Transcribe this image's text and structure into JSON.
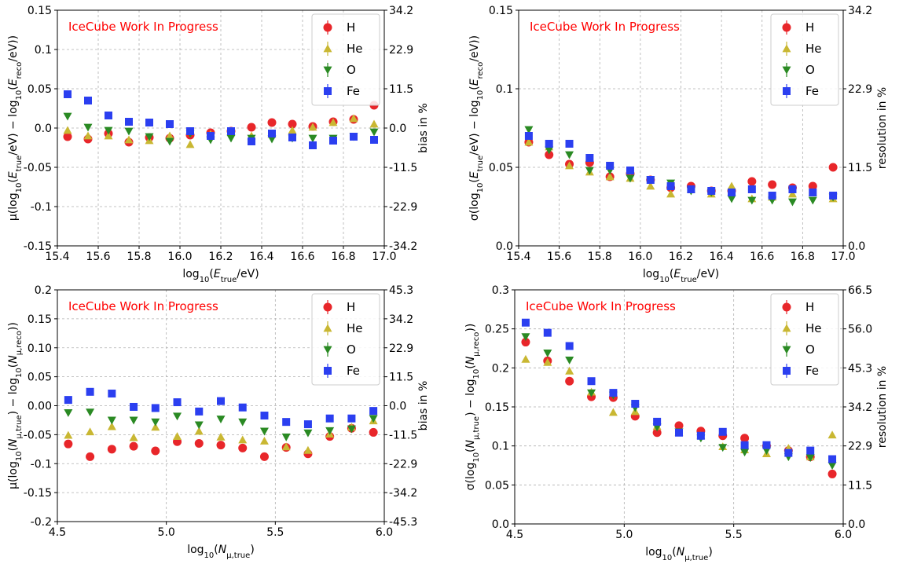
{
  "markers": {
    "H": "circle",
    "He": "triangle-up",
    "O": "triangle-down",
    "Fe": "square"
  },
  "colors": {
    "H": "#e8262a",
    "He": "#c9b732",
    "O": "#2a8a23",
    "Fe": "#2b3ff0",
    "watermark": "#ff0000",
    "grid": "#b0b0b0"
  },
  "chart_data": [
    {
      "type": "scatter",
      "watermark": "IceCube Work In Progress",
      "xlabel": "log10(Etrue/eV)",
      "ylabel": "μ(log10(Etrue/eV) − log10(Ereco/eV))",
      "ylabel_right": "bias in %",
      "xlim": [
        15.4,
        17.0
      ],
      "ylim": [
        -0.15,
        0.15
      ],
      "xticks": [
        15.4,
        15.6,
        15.8,
        16.0,
        16.2,
        16.4,
        16.6,
        16.8,
        17.0
      ],
      "xticklabels": [
        "15.4",
        "15.6",
        "15.8",
        "16.0",
        "16.2",
        "16.4",
        "16.6",
        "16.8",
        "17.0"
      ],
      "yticks": [
        -0.15,
        -0.1,
        -0.05,
        0.0,
        0.05,
        0.1,
        0.15
      ],
      "yticklabels": [
        "-0.15",
        "-0.1",
        "-0.05",
        "0.0",
        "0.05",
        "0.1",
        "0.15"
      ],
      "right_ticklabels": [
        "-34.2",
        "-22.9",
        "-11.5",
        "0.0",
        "11.5",
        "22.9",
        "34.2"
      ],
      "grid": true,
      "legend": "top-right",
      "x": [
        15.45,
        15.55,
        15.65,
        15.75,
        15.85,
        15.95,
        16.05,
        16.15,
        16.25,
        16.35,
        16.45,
        16.55,
        16.65,
        16.75,
        16.85,
        16.95
      ],
      "series": [
        {
          "name": "H",
          "values": [
            -0.011,
            -0.014,
            -0.007,
            -0.018,
            -0.012,
            -0.013,
            -0.009,
            -0.006,
            -0.004,
            0.001,
            0.007,
            0.005,
            0.002,
            0.008,
            0.011,
            0.029
          ]
        },
        {
          "name": "He",
          "values": [
            -0.003,
            -0.01,
            -0.01,
            -0.015,
            -0.016,
            -0.01,
            -0.021,
            -0.008,
            -0.005,
            -0.01,
            -0.008,
            -0.003,
            0.001,
            0.007,
            0.012,
            0.005
          ]
        },
        {
          "name": "O",
          "values": [
            0.015,
            0.001,
            -0.003,
            -0.004,
            -0.011,
            -0.017,
            -0.007,
            -0.015,
            -0.013,
            -0.013,
            -0.014,
            -0.013,
            -0.013,
            -0.013,
            -0.011,
            -0.005
          ]
        },
        {
          "name": "Fe",
          "values": [
            0.043,
            0.035,
            0.016,
            0.008,
            0.007,
            0.005,
            -0.004,
            -0.01,
            -0.004,
            -0.017,
            -0.007,
            -0.012,
            -0.022,
            -0.016,
            -0.011,
            -0.015
          ]
        }
      ]
    },
    {
      "type": "scatter",
      "watermark": "IceCube Work In Progress",
      "xlabel": "log10(Etrue/eV)",
      "ylabel": "σ(log10(Etrue/eV) − log10(Ereco/eV))",
      "ylabel_right": "resolution in %",
      "xlim": [
        15.4,
        17.0
      ],
      "ylim": [
        0.0,
        0.15
      ],
      "xticks": [
        15.4,
        15.6,
        15.8,
        16.0,
        16.2,
        16.4,
        16.6,
        16.8,
        17.0
      ],
      "xticklabels": [
        "15.4",
        "15.6",
        "15.8",
        "16.0",
        "16.2",
        "16.4",
        "16.6",
        "16.8",
        "17.0"
      ],
      "yticks": [
        0.0,
        0.05,
        0.1,
        0.15
      ],
      "yticklabels": [
        "0.0",
        "0.05",
        "0.1",
        "0.15"
      ],
      "right_ticks": [
        0.0,
        0.05,
        0.1,
        0.15
      ],
      "right_ticklabels": [
        "0.0",
        "11.5",
        "22.9",
        "34.2"
      ],
      "grid": true,
      "legend": "top-right",
      "x": [
        15.45,
        15.55,
        15.65,
        15.75,
        15.85,
        15.95,
        16.05,
        16.15,
        16.25,
        16.35,
        16.45,
        16.55,
        16.65,
        16.75,
        16.85,
        16.95
      ],
      "series": [
        {
          "name": "H",
          "values": [
            0.066,
            0.058,
            0.052,
            0.053,
            0.044,
            0.046,
            0.042,
            0.037,
            0.038,
            0.035,
            0.035,
            0.041,
            0.039,
            0.037,
            0.038,
            0.05
          ]
        },
        {
          "name": "He",
          "values": [
            0.066,
            0.063,
            0.051,
            0.047,
            0.044,
            0.043,
            0.038,
            0.033,
            0.036,
            0.033,
            0.038,
            0.03,
            0.031,
            0.033,
            0.034,
            0.03
          ]
        },
        {
          "name": "O",
          "values": [
            0.074,
            0.061,
            0.058,
            0.048,
            0.048,
            0.043,
            0.042,
            0.04,
            0.035,
            0.034,
            0.03,
            0.029,
            0.029,
            0.028,
            0.029,
            0.031
          ]
        },
        {
          "name": "Fe",
          "values": [
            0.07,
            0.065,
            0.065,
            0.056,
            0.051,
            0.048,
            0.042,
            0.038,
            0.036,
            0.035,
            0.034,
            0.036,
            0.032,
            0.036,
            0.034,
            0.032
          ]
        }
      ]
    },
    {
      "type": "scatter",
      "watermark": "IceCube Work In Progress",
      "xlabel": "log10(Nμ,true)",
      "ylabel": "μ(log10(Nμ,true) − log10(Nμ,reco))",
      "ylabel_right": "bias in %",
      "xlim": [
        4.5,
        6.0
      ],
      "ylim": [
        -0.2,
        0.2
      ],
      "xticks": [
        4.5,
        5.0,
        5.5,
        6.0
      ],
      "xticklabels": [
        "4.5",
        "5.0",
        "5.5",
        "6.0"
      ],
      "yticks": [
        -0.2,
        -0.15,
        -0.1,
        -0.05,
        0.0,
        0.05,
        0.1,
        0.15,
        0.2
      ],
      "yticklabels": [
        "-0.2",
        "-0.15",
        "-0.1",
        "-0.05",
        "0.00",
        "0.05",
        "0.10",
        "0.15",
        "0.2"
      ],
      "right_ticks": [
        -0.2,
        -0.15,
        -0.1,
        -0.05,
        0.0,
        0.05,
        0.1,
        0.15,
        0.2
      ],
      "right_ticklabels": [
        "-45.3",
        "-34.2",
        "-22.9",
        "-11.5",
        "0.0",
        "11.5",
        "22.9",
        "34.2",
        "45.3"
      ],
      "grid": true,
      "legend": "top-right",
      "x": [
        4.55,
        4.65,
        4.75,
        4.85,
        4.95,
        5.05,
        5.15,
        5.25,
        5.35,
        5.45,
        5.55,
        5.65,
        5.75,
        5.85,
        5.95
      ],
      "series": [
        {
          "name": "H",
          "values": [
            -0.066,
            -0.088,
            -0.075,
            -0.07,
            -0.078,
            -0.062,
            -0.065,
            -0.068,
            -0.073,
            -0.088,
            -0.072,
            -0.083,
            -0.053,
            -0.039,
            -0.046
          ]
        },
        {
          "name": "He",
          "values": [
            -0.051,
            -0.045,
            -0.036,
            -0.055,
            -0.037,
            -0.053,
            -0.044,
            -0.054,
            -0.059,
            -0.061,
            -0.071,
            -0.077,
            -0.049,
            -0.037,
            -0.026
          ]
        },
        {
          "name": "O",
          "values": [
            -0.012,
            -0.011,
            -0.025,
            -0.025,
            -0.028,
            -0.018,
            -0.033,
            -0.023,
            -0.028,
            -0.044,
            -0.054,
            -0.047,
            -0.043,
            -0.04,
            -0.022
          ]
        },
        {
          "name": "Fe",
          "values": [
            0.01,
            0.024,
            0.021,
            -0.002,
            -0.004,
            0.006,
            -0.01,
            0.008,
            -0.003,
            -0.017,
            -0.028,
            -0.032,
            -0.022,
            -0.022,
            -0.009
          ]
        }
      ]
    },
    {
      "type": "scatter",
      "watermark": "IceCube Work In Progress",
      "xlabel": "log10(Nμ,true)",
      "ylabel": "σ(log10(Nμ,true) − log10(Nμ,reco))",
      "ylabel_right": "resolution in %",
      "xlim": [
        4.5,
        6.0
      ],
      "ylim": [
        0.0,
        0.3
      ],
      "xticks": [
        4.5,
        5.0,
        5.5,
        6.0
      ],
      "xticklabels": [
        "4.5",
        "5.0",
        "5.5",
        "6.0"
      ],
      "yticks": [
        0.0,
        0.05,
        0.1,
        0.15,
        0.2,
        0.25,
        0.3
      ],
      "yticklabels": [
        "0.0",
        "0.05",
        "0.1",
        "0.15",
        "0.2",
        "0.25",
        "0.3"
      ],
      "right_ticks": [
        0.0,
        0.05,
        0.1,
        0.15,
        0.2,
        0.25,
        0.3
      ],
      "right_ticklabels": [
        "0.0",
        "11.5",
        "22.9",
        "34.2",
        "45.3",
        "56.0",
        "66.5"
      ],
      "grid": true,
      "legend": "top-right",
      "x": [
        4.55,
        4.65,
        4.75,
        4.85,
        4.95,
        5.05,
        5.15,
        5.25,
        5.35,
        5.45,
        5.55,
        5.65,
        5.75,
        5.85,
        5.95
      ],
      "series": [
        {
          "name": "H",
          "values": [
            0.233,
            0.209,
            0.183,
            0.163,
            0.162,
            0.138,
            0.117,
            0.126,
            0.119,
            0.113,
            0.11,
            0.1,
            0.094,
            0.086,
            0.064
          ]
        },
        {
          "name": "He",
          "values": [
            0.211,
            0.207,
            0.196,
            0.169,
            0.143,
            0.144,
            0.125,
            0.117,
            0.113,
            0.099,
            0.095,
            0.09,
            0.097,
            0.086,
            0.114
          ]
        },
        {
          "name": "O",
          "values": [
            0.24,
            0.219,
            0.21,
            0.168,
            0.165,
            0.149,
            0.124,
            0.118,
            0.11,
            0.098,
            0.092,
            0.094,
            0.086,
            0.085,
            0.075
          ]
        },
        {
          "name": "Fe",
          "values": [
            0.258,
            0.245,
            0.228,
            0.183,
            0.168,
            0.154,
            0.131,
            0.117,
            0.113,
            0.118,
            0.101,
            0.101,
            0.091,
            0.094,
            0.083
          ]
        }
      ]
    }
  ]
}
